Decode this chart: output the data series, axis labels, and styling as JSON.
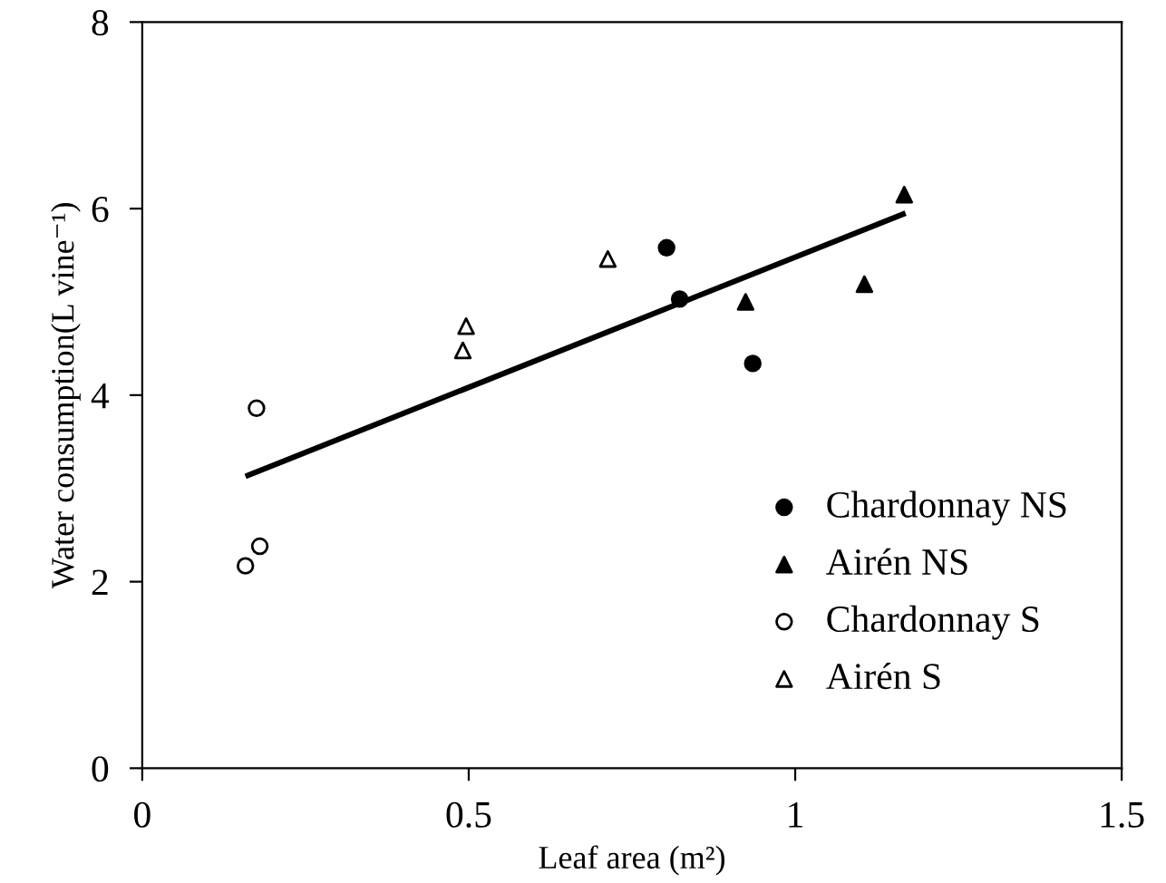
{
  "chart_data": {
    "type": "scatter",
    "xlabel": "Leaf area (m²)",
    "ylabel": "Water consumption(L vine⁻¹)",
    "xlim": [
      0,
      1.5
    ],
    "ylim": [
      0,
      8
    ],
    "xticks": [
      0,
      0.5,
      1,
      1.5
    ],
    "yticks": [
      0,
      2,
      4,
      6,
      8
    ],
    "grid": false,
    "legend": "bottom right",
    "series": [
      {
        "name": "Chardonnay NS",
        "color": "#000000",
        "marker": "circle",
        "x": [
          0.803,
          0.823,
          0.935
        ],
        "values": [
          5.58,
          5.03,
          4.34
        ]
      },
      {
        "name": "Airén NS",
        "color": "#000000",
        "marker": "triangle",
        "x": [
          0.924,
          1.106,
          1.167
        ],
        "values": [
          5.0,
          5.19,
          6.15
        ]
      },
      {
        "name": "Chardonnay S",
        "color": "#ffffff",
        "marker": "circle",
        "x": [
          0.175,
          0.158,
          0.18
        ],
        "values": [
          3.86,
          2.17,
          2.38
        ]
      },
      {
        "name": "Airén S",
        "color": "#ffffff",
        "marker": "triangle",
        "x": [
          0.496,
          0.491,
          0.713
        ],
        "values": [
          4.74,
          4.48,
          5.46
        ]
      },
      {
        "type": "line",
        "color": "#000000",
        "line_style": "solid",
        "x": [
          0.162,
          1.165
        ],
        "values": [
          3.14,
          5.94
        ]
      }
    ]
  }
}
